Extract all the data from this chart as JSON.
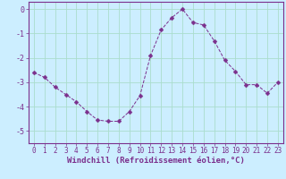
{
  "x": [
    0,
    1,
    2,
    3,
    4,
    5,
    6,
    7,
    8,
    9,
    10,
    11,
    12,
    13,
    14,
    15,
    16,
    17,
    18,
    19,
    20,
    21,
    22,
    23
  ],
  "y": [
    -2.6,
    -2.8,
    -3.2,
    -3.5,
    -3.8,
    -4.2,
    -4.55,
    -4.6,
    -4.6,
    -4.2,
    -3.55,
    -1.9,
    -0.85,
    -0.35,
    0.0,
    -0.55,
    -0.65,
    -1.3,
    -2.1,
    -2.55,
    -3.1,
    -3.1,
    -3.45,
    -3.0
  ],
  "line_color": "#7b2f8c",
  "marker": "D",
  "marker_size": 2.5,
  "bg_color": "#cceeff",
  "grid_color": "#aaddcc",
  "xlabel": "Windchill (Refroidissement éolien,°C)",
  "xlabel_fontsize": 6.5,
  "ylim": [
    -5.5,
    0.3
  ],
  "xlim": [
    -0.5,
    23.5
  ],
  "yticks": [
    0,
    -1,
    -2,
    -3,
    -4,
    -5
  ],
  "ytick_labels": [
    "0",
    "-1",
    "-2",
    "-3",
    "-4",
    "-5"
  ],
  "xticks": [
    0,
    1,
    2,
    3,
    4,
    5,
    6,
    7,
    8,
    9,
    10,
    11,
    12,
    13,
    14,
    15,
    16,
    17,
    18,
    19,
    20,
    21,
    22,
    23
  ],
  "tick_fontsize": 5.5,
  "spine_color": "#7b2f8c"
}
